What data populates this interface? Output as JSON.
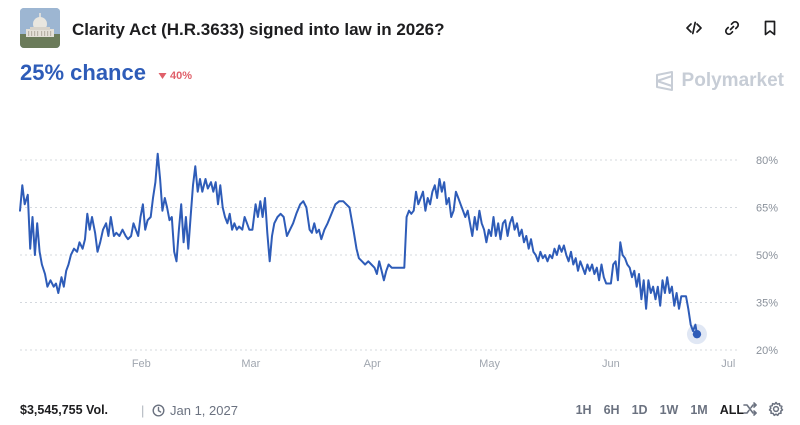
{
  "header": {
    "title": "Clarity Act (H.R.3633) signed into law in 2026?",
    "thumbnail_icon": "capitol-building-image",
    "icons": [
      "embed-code-icon",
      "link-icon",
      "bookmark-icon"
    ]
  },
  "summary": {
    "chance": "25% chance",
    "delta": "40%",
    "delta_direction": "down",
    "delta_color": "#e0606a",
    "accent_color": "#2e5cb8"
  },
  "brand": {
    "name": "Polymarket"
  },
  "footer": {
    "volume": "$3,545,755 Vol.",
    "separator": "|",
    "end_date": "Jan 1, 2027",
    "ranges": [
      "1H",
      "6H",
      "1D",
      "1W",
      "1M",
      "ALL"
    ],
    "active_range": "ALL"
  },
  "chart_data": {
    "type": "line",
    "y_tick_labels": [
      "80%",
      "65%",
      "50%",
      "35%",
      "20%"
    ],
    "y_ticks": [
      80,
      65,
      50,
      35,
      20
    ],
    "ylim": [
      20,
      80
    ],
    "x_tick_labels": [
      "Feb",
      "Mar",
      "Apr",
      "May",
      "Jun",
      "Jul"
    ],
    "x_ticks": [
      31,
      59,
      90,
      120,
      151,
      181
    ],
    "grid": true,
    "line_color": "#2e5cb8",
    "series": [
      {
        "values": [
          [
            0,
            64
          ],
          [
            0.6,
            72
          ],
          [
            1.2,
            66
          ],
          [
            2,
            69
          ],
          [
            2.6,
            52
          ],
          [
            3.2,
            62
          ],
          [
            3.8,
            50
          ],
          [
            4.4,
            60
          ],
          [
            5,
            51
          ],
          [
            5.6,
            47
          ],
          [
            6.4,
            44
          ],
          [
            7,
            40
          ],
          [
            7.8,
            42
          ],
          [
            8.6,
            40
          ],
          [
            9.2,
            41
          ],
          [
            9.8,
            38
          ],
          [
            10.6,
            43
          ],
          [
            11.2,
            40
          ],
          [
            11.8,
            45
          ],
          [
            12.4,
            47
          ],
          [
            13,
            50
          ],
          [
            13.8,
            52
          ],
          [
            14.6,
            51
          ],
          [
            15.2,
            54
          ],
          [
            16,
            52
          ],
          [
            16.6,
            55
          ],
          [
            17.2,
            63
          ],
          [
            17.8,
            58
          ],
          [
            18.4,
            62
          ],
          [
            19.2,
            57
          ],
          [
            19.8,
            51
          ],
          [
            20.5,
            54
          ],
          [
            21.2,
            58
          ],
          [
            22,
            60
          ],
          [
            22.6,
            56
          ],
          [
            23.2,
            62
          ],
          [
            24,
            56
          ],
          [
            24.6,
            57
          ],
          [
            25.4,
            56
          ],
          [
            26.2,
            58
          ],
          [
            27,
            56
          ],
          [
            27.6,
            55
          ],
          [
            28.4,
            56
          ],
          [
            29,
            60
          ],
          [
            29.6,
            58
          ],
          [
            30.2,
            56
          ],
          [
            30.8,
            62
          ],
          [
            31.4,
            66
          ],
          [
            32,
            58
          ],
          [
            32.6,
            61
          ],
          [
            33.4,
            62
          ],
          [
            34,
            68
          ],
          [
            34.6,
            73
          ],
          [
            35.2,
            82
          ],
          [
            35.8,
            74
          ],
          [
            36.4,
            64
          ],
          [
            37,
            68
          ],
          [
            37.6,
            65
          ],
          [
            38.2,
            61
          ],
          [
            38.8,
            62
          ],
          [
            39.4,
            51
          ],
          [
            40,
            48
          ],
          [
            40.6,
            58
          ],
          [
            41.2,
            66
          ],
          [
            41.8,
            54
          ],
          [
            42.4,
            62
          ],
          [
            43,
            52
          ],
          [
            43.6,
            62
          ],
          [
            44.2,
            72
          ],
          [
            44.8,
            78
          ],
          [
            45.4,
            70
          ],
          [
            46,
            74
          ],
          [
            46.6,
            70
          ],
          [
            47.4,
            74
          ],
          [
            48,
            71
          ],
          [
            48.8,
            73
          ],
          [
            49.4,
            70
          ],
          [
            50,
            73
          ],
          [
            50.6,
            66
          ],
          [
            51.2,
            72
          ],
          [
            51.8,
            65
          ],
          [
            52.4,
            62
          ],
          [
            53,
            60
          ],
          [
            53.6,
            63
          ],
          [
            54.2,
            58
          ],
          [
            54.8,
            60
          ],
          [
            55.4,
            58
          ],
          [
            56,
            59
          ],
          [
            56.8,
            58
          ],
          [
            57.4,
            62
          ],
          [
            58,
            60
          ],
          [
            58.6,
            58
          ],
          [
            59.4,
            58
          ],
          [
            60.2,
            66
          ],
          [
            60.8,
            62
          ],
          [
            61.4,
            67
          ],
          [
            62,
            62
          ],
          [
            62.6,
            68
          ],
          [
            63.2,
            57
          ],
          [
            63.8,
            48
          ],
          [
            64.4,
            56
          ],
          [
            65,
            60
          ],
          [
            65.8,
            62
          ],
          [
            66.6,
            63
          ],
          [
            67.4,
            62
          ],
          [
            68.2,
            56
          ],
          [
            69,
            58
          ],
          [
            69.8,
            60
          ],
          [
            70.6,
            63
          ],
          [
            71.6,
            66
          ],
          [
            72.4,
            67
          ],
          [
            73.2,
            65
          ],
          [
            74,
            58
          ],
          [
            74.6,
            57
          ],
          [
            75.2,
            60
          ],
          [
            75.8,
            57
          ],
          [
            76.4,
            58
          ],
          [
            77,
            55
          ],
          [
            77.8,
            58
          ],
          [
            78.6,
            60
          ],
          [
            79.6,
            63
          ],
          [
            80.6,
            66
          ],
          [
            81.6,
            67
          ],
          [
            82.6,
            67
          ],
          [
            83.4,
            66
          ],
          [
            84.2,
            65
          ],
          [
            85.2,
            58
          ],
          [
            86,
            52
          ],
          [
            86.6,
            49
          ],
          [
            87.4,
            48
          ],
          [
            88.2,
            47
          ],
          [
            89,
            48
          ],
          [
            89.8,
            47
          ],
          [
            90.6,
            46
          ],
          [
            91.2,
            44
          ],
          [
            91.8,
            48
          ],
          [
            92.4,
            45
          ],
          [
            93,
            42
          ],
          [
            93.6,
            45
          ],
          [
            94.2,
            47
          ],
          [
            95,
            46
          ],
          [
            95.8,
            46
          ],
          [
            96.6,
            46
          ],
          [
            97.4,
            46
          ],
          [
            98.2,
            46
          ],
          [
            98.8,
            62
          ],
          [
            99.4,
            64
          ],
          [
            100,
            63
          ],
          [
            100.6,
            64
          ],
          [
            101.2,
            70
          ],
          [
            101.8,
            66
          ],
          [
            102.4,
            68
          ],
          [
            103,
            70
          ],
          [
            103.6,
            64
          ],
          [
            104.2,
            68
          ],
          [
            104.8,
            66
          ],
          [
            105.4,
            70
          ],
          [
            106,
            72
          ],
          [
            106.6,
            68
          ],
          [
            107.2,
            74
          ],
          [
            107.8,
            70
          ],
          [
            108.4,
            73
          ],
          [
            109,
            66
          ],
          [
            109.6,
            68
          ],
          [
            110.2,
            62
          ],
          [
            110.8,
            64
          ],
          [
            111.4,
            70
          ],
          [
            112,
            68
          ],
          [
            112.6,
            66
          ],
          [
            113.2,
            64
          ],
          [
            113.8,
            62
          ],
          [
            114.4,
            64
          ],
          [
            115,
            60
          ],
          [
            115.6,
            56
          ],
          [
            116.2,
            62
          ],
          [
            116.8,
            58
          ],
          [
            117.4,
            64
          ],
          [
            118,
            60
          ],
          [
            118.6,
            58
          ],
          [
            119.2,
            54
          ],
          [
            119.8,
            58
          ],
          [
            120.4,
            56
          ],
          [
            121,
            62
          ],
          [
            121.6,
            56
          ],
          [
            122.2,
            60
          ],
          [
            122.8,
            55
          ],
          [
            123.4,
            60
          ],
          [
            124,
            61
          ],
          [
            124.6,
            56
          ],
          [
            125.2,
            60
          ],
          [
            125.8,
            62
          ],
          [
            126.4,
            58
          ],
          [
            127,
            60
          ],
          [
            127.6,
            56
          ],
          [
            128.2,
            58
          ],
          [
            128.8,
            54
          ],
          [
            129.4,
            56
          ],
          [
            130,
            52
          ],
          [
            130.6,
            55
          ],
          [
            131.2,
            51
          ],
          [
            131.8,
            50
          ],
          [
            132.4,
            48
          ],
          [
            133,
            51
          ],
          [
            133.6,
            49
          ],
          [
            134.2,
            50
          ],
          [
            134.8,
            48
          ],
          [
            135.4,
            50
          ],
          [
            136,
            49
          ],
          [
            136.6,
            52
          ],
          [
            137.2,
            50
          ],
          [
            137.8,
            53
          ],
          [
            138.4,
            51
          ],
          [
            139,
            53
          ],
          [
            139.6,
            50
          ],
          [
            140.2,
            48
          ],
          [
            140.8,
            51
          ],
          [
            141.4,
            47
          ],
          [
            142,
            49
          ],
          [
            142.6,
            45
          ],
          [
            143.2,
            48
          ],
          [
            143.8,
            46
          ],
          [
            144.4,
            44
          ],
          [
            145,
            47
          ],
          [
            145.6,
            45
          ],
          [
            146.2,
            47
          ],
          [
            146.8,
            44
          ],
          [
            147.4,
            46
          ],
          [
            148,
            42
          ],
          [
            148.6,
            47
          ],
          [
            149.2,
            43
          ],
          [
            149.8,
            41
          ],
          [
            150.4,
            41
          ],
          [
            151,
            41
          ],
          [
            151.6,
            47
          ],
          [
            152.2,
            48
          ],
          [
            152.8,
            42
          ],
          [
            153.4,
            54
          ],
          [
            154,
            50
          ],
          [
            154.6,
            49
          ],
          [
            155.2,
            47
          ],
          [
            155.8,
            46
          ],
          [
            156.4,
            43
          ],
          [
            157,
            45
          ],
          [
            157.6,
            40
          ],
          [
            158.2,
            44
          ],
          [
            158.8,
            36
          ],
          [
            159.4,
            42
          ],
          [
            160,
            33
          ],
          [
            160.6,
            42
          ],
          [
            161.2,
            38
          ],
          [
            161.8,
            40
          ],
          [
            162.4,
            36
          ],
          [
            163,
            40
          ],
          [
            163.6,
            34
          ],
          [
            164.2,
            42
          ],
          [
            164.8,
            38
          ],
          [
            165.4,
            43
          ],
          [
            166,
            38
          ],
          [
            166.6,
            40
          ],
          [
            167.2,
            34
          ],
          [
            167.8,
            38
          ],
          [
            168.4,
            33
          ],
          [
            169,
            37
          ],
          [
            169.6,
            37
          ],
          [
            170.2,
            37
          ],
          [
            170.8,
            33
          ],
          [
            171.4,
            28
          ],
          [
            172,
            26
          ],
          [
            172.6,
            28
          ],
          [
            173,
            25
          ]
        ]
      }
    ]
  }
}
